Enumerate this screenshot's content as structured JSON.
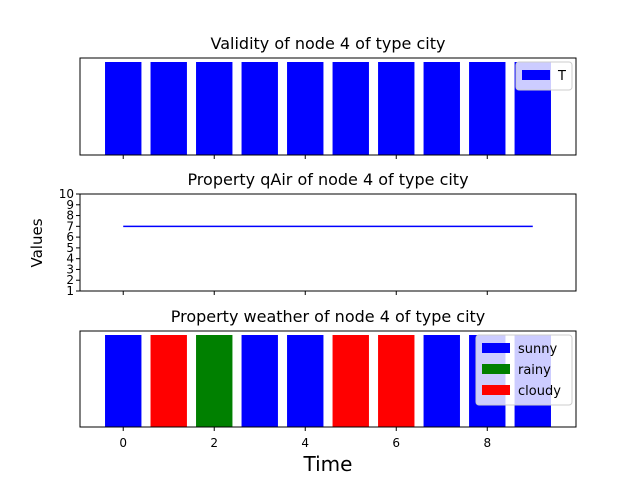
{
  "chart_data": [
    {
      "type": "bar",
      "title": "Validity of node 4 of type city",
      "x": [
        0,
        1,
        2,
        3,
        4,
        5,
        6,
        7,
        8,
        9
      ],
      "values": [
        "T",
        "T",
        "T",
        "T",
        "T",
        "T",
        "T",
        "T",
        "T",
        "T"
      ],
      "legend": [
        {
          "label": "T",
          "color": "#0000ff"
        }
      ],
      "legend_position": "upper right",
      "xlim": [
        -0.95,
        9.95
      ],
      "y_ticks_visible": false
    },
    {
      "type": "line",
      "title": "Property qAir of node 4 of type city",
      "ylabel": "Values",
      "x": [
        0,
        1,
        2,
        3,
        4,
        5,
        6,
        7,
        8,
        9
      ],
      "values": [
        7,
        7,
        7,
        7,
        7,
        7,
        7,
        7,
        7,
        7
      ],
      "color": "#0000ff",
      "xlim": [
        -0.95,
        9.95
      ],
      "ylim": [
        1,
        10
      ],
      "yticks": [
        1,
        2,
        3,
        4,
        5,
        6,
        7,
        8,
        9,
        10
      ]
    },
    {
      "type": "bar",
      "title": "Property weather of node 4 of type city",
      "xlabel": "Time",
      "x": [
        0,
        1,
        2,
        3,
        4,
        5,
        6,
        7,
        8,
        9
      ],
      "values": [
        "sunny",
        "cloudy",
        "rainy",
        "sunny",
        "sunny",
        "cloudy",
        "cloudy",
        "sunny",
        "sunny",
        "sunny"
      ],
      "legend": [
        {
          "label": "sunny",
          "color": "#0000ff"
        },
        {
          "label": "rainy",
          "color": "#008000"
        },
        {
          "label": "cloudy",
          "color": "#ff0000"
        }
      ],
      "legend_position": "upper right",
      "xlim": [
        -0.95,
        9.95
      ],
      "xticks": [
        0,
        2,
        4,
        6,
        8
      ],
      "y_ticks_visible": false
    }
  ]
}
